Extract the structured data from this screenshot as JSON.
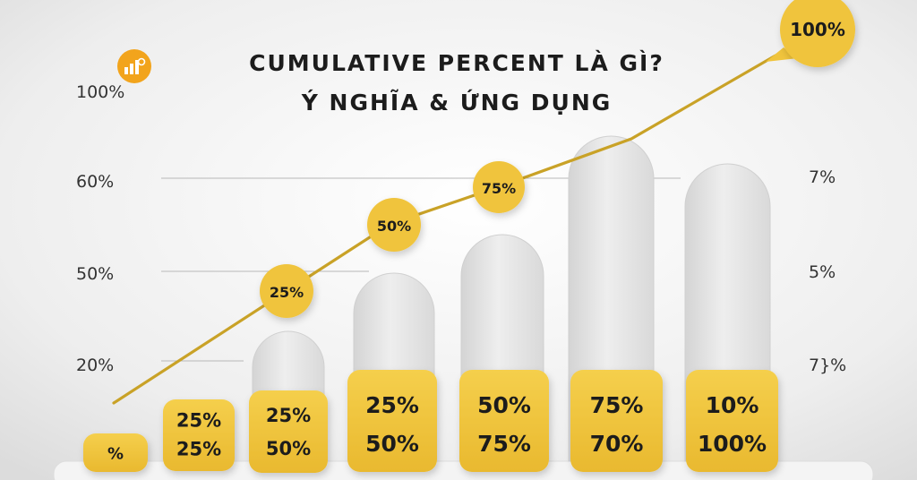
{
  "title_line1": "CUMULATIVE PERCENT LÀ GÌ?",
  "title_line2": "Ý NGHĨA & ỨNG DỤNG",
  "logo_icon": "chart-logo-icon",
  "colors": {
    "gold": "#f0c43c",
    "gold_dark": "#c9a12b",
    "line": "#c9a227",
    "pillar": "#e2e2e2",
    "text": "#1c1c1c",
    "logo": "#f2a41c"
  },
  "chart_data": {
    "type": "bar",
    "left_axis_labels": [
      "100%",
      "60%",
      "50%",
      "20%"
    ],
    "right_axis_labels": [
      "7%",
      "5%",
      "7}%"
    ],
    "bars": [
      {
        "label_line1": "%",
        "label_line2": ""
      },
      {
        "label_line1": "25%",
        "label_line2": "25%"
      },
      {
        "label_line1": "25%",
        "label_line2": "50%"
      },
      {
        "label_line1": "25%",
        "label_line2": "50%"
      },
      {
        "label_line1": "50%",
        "label_line2": "75%"
      },
      {
        "label_line1": "75%",
        "label_line2": "70%"
      },
      {
        "label_line1": "10%",
        "label_line2": "100%"
      }
    ],
    "line_markers": [
      "25%",
      "50%",
      "75%",
      "100%"
    ]
  }
}
